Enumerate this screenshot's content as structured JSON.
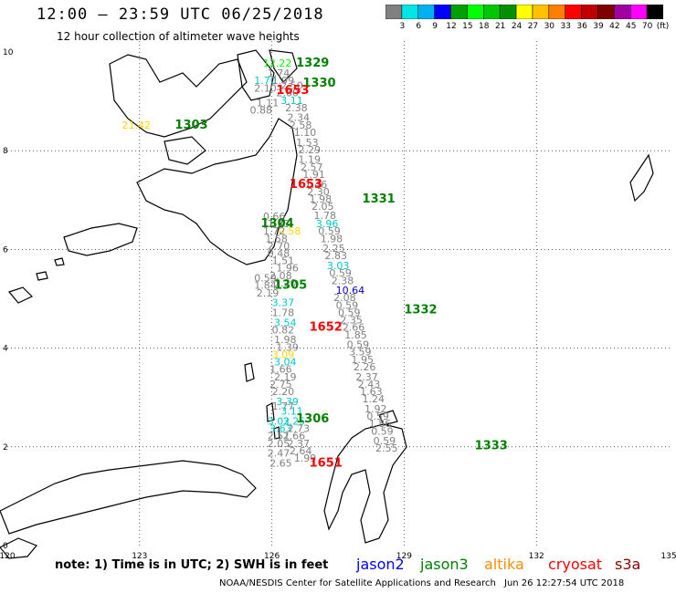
{
  "header": {
    "title": "12:00 – 23:59 UTC 06/25/2018",
    "subtitle": "12 hour collection of altimeter wave heights"
  },
  "color_scale": {
    "unit": "(ft)",
    "colors": [
      "#808080",
      "#00e5e5",
      "#00b0f0",
      "#0000ff",
      "#00a000",
      "#00ff00",
      "#00c800",
      "#009000",
      "#ffff00",
      "#ffc000",
      "#ff8000",
      "#ff0000",
      "#c00000",
      "#800000",
      "#a000a0",
      "#ff00ff",
      "#000000"
    ],
    "labels": [
      "3",
      "6",
      "9",
      "12",
      "15",
      "18",
      "21",
      "24",
      "27",
      "30",
      "33",
      "36",
      "39",
      "42",
      "45",
      "70"
    ]
  },
  "axes": {
    "x_ticks": [
      "120",
      "123",
      "126",
      "129",
      "132",
      "135"
    ],
    "y_ticks": [
      "0",
      "2",
      "4",
      "6",
      "8",
      "10"
    ]
  },
  "footer": {
    "note": "note: 1) Time is in UTC; 2) SWH is in feet",
    "legend": [
      {
        "label": "jason2",
        "color": "#0000ff"
      },
      {
        "label": "jason3",
        "color": "#008000"
      },
      {
        "label": "altika",
        "color": "#ff8c00"
      },
      {
        "label": "cryosat",
        "color": "#ff0000"
      },
      {
        "label": "s3a",
        "color": "#8b0000"
      }
    ],
    "credit": "NOAA/NESDIS Center for Satellite Applications and Research",
    "timestamp": "Jun 26 12:27:54 UTC 2018"
  },
  "observations": [
    {
      "lon": 125.8,
      "lat": 9.7,
      "v": "12.22",
      "c": "#00ff00"
    },
    {
      "lon": 125.6,
      "lat": 9.35,
      "v": "1.70",
      "c": "#00c8c8"
    },
    {
      "lon": 125.6,
      "lat": 9.2,
      "v": "2.10",
      "c": "#808080"
    },
    {
      "lon": 125.9,
      "lat": 9.5,
      "v": "1.74",
      "c": "#808080"
    },
    {
      "lon": 126.0,
      "lat": 9.35,
      "v": "1.99",
      "c": "#808080"
    },
    {
      "lon": 126.2,
      "lat": 9.25,
      "v": "2.50",
      "c": "#808080"
    },
    {
      "lon": 126.1,
      "lat": 9.1,
      "v": "2.60",
      "c": "#808080"
    },
    {
      "lon": 126.2,
      "lat": 8.95,
      "v": "3.11",
      "c": "#00c8c8"
    },
    {
      "lon": 126.3,
      "lat": 8.8,
      "v": "2.38",
      "c": "#808080"
    },
    {
      "lon": 126.35,
      "lat": 8.6,
      "v": "2.34",
      "c": "#808080"
    },
    {
      "lon": 126.4,
      "lat": 8.45,
      "v": "2.58",
      "c": "#808080"
    },
    {
      "lon": 126.5,
      "lat": 8.3,
      "v": "1.10",
      "c": "#808080"
    },
    {
      "lon": 126.55,
      "lat": 8.1,
      "v": "1.53",
      "c": "#808080"
    },
    {
      "lon": 126.6,
      "lat": 7.95,
      "v": "2.29",
      "c": "#808080"
    },
    {
      "lon": 126.6,
      "lat": 7.75,
      "v": "1.19",
      "c": "#808080"
    },
    {
      "lon": 126.65,
      "lat": 7.6,
      "v": "2.57",
      "c": "#808080"
    },
    {
      "lon": 126.7,
      "lat": 7.45,
      "v": "1.91",
      "c": "#808080"
    },
    {
      "lon": 126.75,
      "lat": 7.25,
      "v": "1.46",
      "c": "#808080"
    },
    {
      "lon": 126.8,
      "lat": 7.1,
      "v": "2.30",
      "c": "#808080"
    },
    {
      "lon": 126.85,
      "lat": 6.95,
      "v": "1.98",
      "c": "#808080"
    },
    {
      "lon": 126.9,
      "lat": 6.8,
      "v": "2.05",
      "c": "#808080"
    },
    {
      "lon": 126.95,
      "lat": 6.62,
      "v": "1.78",
      "c": "#808080"
    },
    {
      "lon": 127.0,
      "lat": 6.45,
      "v": "3.96",
      "c": "#00c8c8"
    },
    {
      "lon": 127.05,
      "lat": 6.3,
      "v": "0.59",
      "c": "#808080"
    },
    {
      "lon": 127.1,
      "lat": 6.15,
      "v": "1.98",
      "c": "#808080"
    },
    {
      "lon": 127.15,
      "lat": 5.95,
      "v": "2.25",
      "c": "#808080"
    },
    {
      "lon": 127.2,
      "lat": 5.8,
      "v": "2.83",
      "c": "#808080"
    },
    {
      "lon": 127.25,
      "lat": 5.6,
      "v": "3.03",
      "c": "#00c8c8"
    },
    {
      "lon": 127.3,
      "lat": 5.45,
      "v": "0.59",
      "c": "#808080"
    },
    {
      "lon": 127.35,
      "lat": 5.3,
      "v": "2.38",
      "c": "#808080"
    },
    {
      "lon": 127.45,
      "lat": 5.1,
      "v": "10.64",
      "c": "#0000c8"
    },
    {
      "lon": 127.4,
      "lat": 4.95,
      "v": "2.08",
      "c": "#808080"
    },
    {
      "lon": 127.45,
      "lat": 4.8,
      "v": "0.59",
      "c": "#808080"
    },
    {
      "lon": 127.5,
      "lat": 4.65,
      "v": "0.59",
      "c": "#808080"
    },
    {
      "lon": 127.55,
      "lat": 4.5,
      "v": "2.35",
      "c": "#808080"
    },
    {
      "lon": 127.6,
      "lat": 4.35,
      "v": "2.66",
      "c": "#808080"
    },
    {
      "lon": 127.65,
      "lat": 4.2,
      "v": "1.85",
      "c": "#808080"
    },
    {
      "lon": 127.7,
      "lat": 4.0,
      "v": "0.59",
      "c": "#808080"
    },
    {
      "lon": 127.75,
      "lat": 3.85,
      "v": "3.59",
      "c": "#808080"
    },
    {
      "lon": 127.8,
      "lat": 3.7,
      "v": "1.95",
      "c": "#808080"
    },
    {
      "lon": 127.85,
      "lat": 3.55,
      "v": "2.26",
      "c": "#808080"
    },
    {
      "lon": 127.9,
      "lat": 3.35,
      "v": "2.37",
      "c": "#808080"
    },
    {
      "lon": 127.95,
      "lat": 3.2,
      "v": "2.43",
      "c": "#808080"
    },
    {
      "lon": 128.0,
      "lat": 3.05,
      "v": "1.63",
      "c": "#808080"
    },
    {
      "lon": 128.05,
      "lat": 2.9,
      "v": "1.24",
      "c": "#808080"
    },
    {
      "lon": 128.1,
      "lat": 2.7,
      "v": "1.92",
      "c": "#808080"
    },
    {
      "lon": 128.15,
      "lat": 2.55,
      "v": "0.59",
      "c": "#808080"
    },
    {
      "lon": 128.2,
      "lat": 2.4,
      "v": "1.86",
      "c": "#808080"
    },
    {
      "lon": 128.25,
      "lat": 2.25,
      "v": "0.59",
      "c": "#808080"
    },
    {
      "lon": 128.3,
      "lat": 2.05,
      "v": "0.59",
      "c": "#808080"
    },
    {
      "lon": 128.35,
      "lat": 1.9,
      "v": "2.55",
      "c": "#808080"
    },
    {
      "lon": 125.8,
      "lat": 6.6,
      "v": "0.66",
      "c": "#808080"
    },
    {
      "lon": 125.9,
      "lat": 6.45,
      "v": "1.33",
      "c": "#808080"
    },
    {
      "lon": 126.15,
      "lat": 6.3,
      "v": "0.58",
      "c": "#ffd700"
    },
    {
      "lon": 125.8,
      "lat": 6.3,
      "v": "1.72",
      "c": "#808080"
    },
    {
      "lon": 125.85,
      "lat": 6.15,
      "v": "1.58",
      "c": "#808080"
    },
    {
      "lon": 125.9,
      "lat": 6.0,
      "v": "2.70",
      "c": "#808080"
    },
    {
      "lon": 125.9,
      "lat": 5.85,
      "v": "0.48",
      "c": "#808080"
    },
    {
      "lon": 126.0,
      "lat": 5.7,
      "v": "1.51",
      "c": "#808080"
    },
    {
      "lon": 126.1,
      "lat": 5.55,
      "v": "1.96",
      "c": "#808080"
    },
    {
      "lon": 125.6,
      "lat": 5.35,
      "v": "0.59",
      "c": "#808080"
    },
    {
      "lon": 125.6,
      "lat": 5.2,
      "v": "1.84",
      "c": "#808080"
    },
    {
      "lon": 125.65,
      "lat": 5.05,
      "v": "2.19",
      "c": "#808080"
    },
    {
      "lon": 125.95,
      "lat": 5.4,
      "v": "2.08",
      "c": "#808080"
    },
    {
      "lon": 126.05,
      "lat": 5.25,
      "v": "1.20",
      "c": "#808080"
    },
    {
      "lon": 126.0,
      "lat": 4.85,
      "v": "3.37",
      "c": "#00c8c8"
    },
    {
      "lon": 126.0,
      "lat": 4.65,
      "v": "1.78",
      "c": "#808080"
    },
    {
      "lon": 126.05,
      "lat": 4.45,
      "v": "3.54",
      "c": "#00c8c8"
    },
    {
      "lon": 126.0,
      "lat": 4.3,
      "v": "0.82",
      "c": "#808080"
    },
    {
      "lon": 126.05,
      "lat": 4.1,
      "v": "1.98",
      "c": "#808080"
    },
    {
      "lon": 126.1,
      "lat": 3.95,
      "v": "1.39",
      "c": "#808080"
    },
    {
      "lon": 126.0,
      "lat": 3.8,
      "v": "3.09",
      "c": "#ffd700"
    },
    {
      "lon": 126.05,
      "lat": 3.65,
      "v": "3.04",
      "c": "#00c8c8"
    },
    {
      "lon": 125.95,
      "lat": 3.5,
      "v": "1.66",
      "c": "#808080"
    },
    {
      "lon": 126.05,
      "lat": 3.35,
      "v": "2.19",
      "c": "#808080"
    },
    {
      "lon": 125.95,
      "lat": 3.2,
      "v": "2.75",
      "c": "#808080"
    },
    {
      "lon": 126.0,
      "lat": 3.05,
      "v": "2.20",
      "c": "#808080"
    },
    {
      "lon": 126.1,
      "lat": 2.85,
      "v": "3.39",
      "c": "#00c8c8"
    },
    {
      "lon": 126.0,
      "lat": 2.75,
      "v": "1.77",
      "c": "#808080"
    },
    {
      "lon": 126.2,
      "lat": 2.65,
      "v": "3.11",
      "c": "#00c8c8"
    },
    {
      "lon": 125.9,
      "lat": 2.45,
      "v": "3.02",
      "c": "#00c8c8"
    },
    {
      "lon": 126.25,
      "lat": 2.45,
      "v": "3.25",
      "c": "#00c8c8"
    },
    {
      "lon": 125.95,
      "lat": 2.3,
      "v": "3.63",
      "c": "#00c8c8"
    },
    {
      "lon": 126.35,
      "lat": 2.3,
      "v": "2.73",
      "c": "#808080"
    },
    {
      "lon": 126.25,
      "lat": 2.15,
      "v": "2.66",
      "c": "#808080"
    },
    {
      "lon": 125.9,
      "lat": 2.15,
      "v": "2.51",
      "c": "#808080"
    },
    {
      "lon": 126.35,
      "lat": 2.0,
      "v": "2.37",
      "c": "#808080"
    },
    {
      "lon": 125.9,
      "lat": 2.0,
      "v": "2.05",
      "c": "#808080"
    },
    {
      "lon": 126.4,
      "lat": 1.85,
      "v": "2.64",
      "c": "#808080"
    },
    {
      "lon": 125.9,
      "lat": 1.8,
      "v": "2.47",
      "c": "#808080"
    },
    {
      "lon": 126.5,
      "lat": 1.7,
      "v": "1.99",
      "c": "#808080"
    },
    {
      "lon": 125.95,
      "lat": 1.6,
      "v": "2.65",
      "c": "#808080"
    },
    {
      "lon": 125.5,
      "lat": 8.75,
      "v": "0.88",
      "c": "#808080"
    },
    {
      "lon": 125.65,
      "lat": 8.9,
      "v": "1.11",
      "c": "#808080"
    },
    {
      "lon": 122.6,
      "lat": 8.45,
      "v": "21.42",
      "c": "#ffd700"
    }
  ],
  "pass_labels": [
    {
      "lon": 126.55,
      "lat": 9.7,
      "v": "1329",
      "c": "#008000"
    },
    {
      "lon": 126.7,
      "lat": 9.3,
      "v": "1330",
      "c": "#008000"
    },
    {
      "lon": 126.1,
      "lat": 9.15,
      "v": "1653",
      "c": "#ff0000"
    },
    {
      "lon": 123.8,
      "lat": 8.45,
      "v": "1303",
      "c": "#008000"
    },
    {
      "lon": 126.4,
      "lat": 7.25,
      "v": "1653",
      "c": "#ff0000"
    },
    {
      "lon": 128.05,
      "lat": 6.95,
      "v": "1331",
      "c": "#008000"
    },
    {
      "lon": 125.75,
      "lat": 6.45,
      "v": "1304",
      "c": "#008000"
    },
    {
      "lon": 126.05,
      "lat": 5.2,
      "v": "1305",
      "c": "#008000"
    },
    {
      "lon": 129.0,
      "lat": 4.7,
      "v": "1332",
      "c": "#008000"
    },
    {
      "lon": 126.85,
      "lat": 4.35,
      "v": "1652",
      "c": "#ff0000"
    },
    {
      "lon": 126.55,
      "lat": 2.5,
      "v": "1306",
      "c": "#008000"
    },
    {
      "lon": 130.6,
      "lat": 1.95,
      "v": "1333",
      "c": "#008000"
    },
    {
      "lon": 126.85,
      "lat": 1.6,
      "v": "1651",
      "c": "#ff0000"
    }
  ]
}
